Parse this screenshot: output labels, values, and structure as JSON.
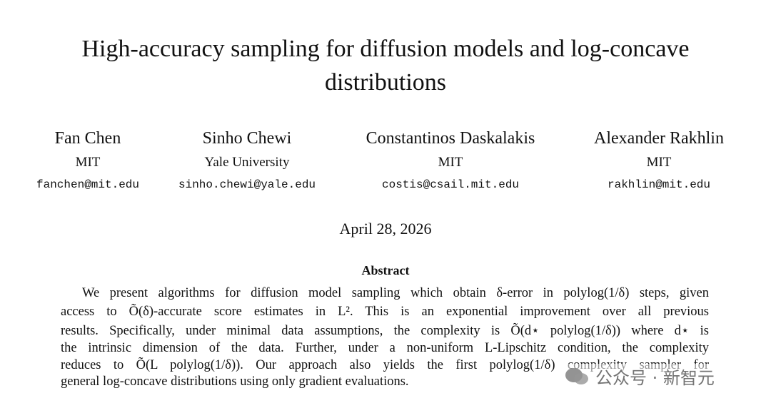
{
  "title": {
    "lines": [
      "High-accuracy sampling for diffusion models and log-concave",
      "distributions"
    ]
  },
  "authors": [
    {
      "name": "Fan Chen",
      "affiliation": "MIT",
      "email": "fanchen@mit.edu"
    },
    {
      "name": "Sinho Chewi",
      "affiliation": "Yale University",
      "email": "sinho.chewi@yale.edu"
    },
    {
      "name": "Constantinos Daskalakis",
      "affiliation": "MIT",
      "email": "costis@csail.mit.edu"
    },
    {
      "name": "Alexander Rakhlin",
      "affiliation": "MIT",
      "email": "rakhlin@mit.edu"
    }
  ],
  "date": "April 28, 2026",
  "abstract": {
    "heading": "Abstract",
    "lines": [
      "We present algorithms for diffusion model sampling which obtain δ-error in polylog(1/δ) steps, given",
      "access to Õ(δ)-accurate score estimates in L². This is an exponential improvement over all previous",
      "results. Specifically, under minimal data assumptions, the complexity is Õ(d⋆ polylog(1/δ)) where d⋆ is",
      "the intrinsic dimension of the data. Further, under a non-uniform L-Lipschitz condition, the complexity",
      "reduces to Õ(L polylog(1/δ)). Our approach also yields the first polylog(1/δ) complexity sampler for",
      "general log-concave distributions using only gradient evaluations."
    ]
  },
  "watermark": "公众号 · 新智元"
}
